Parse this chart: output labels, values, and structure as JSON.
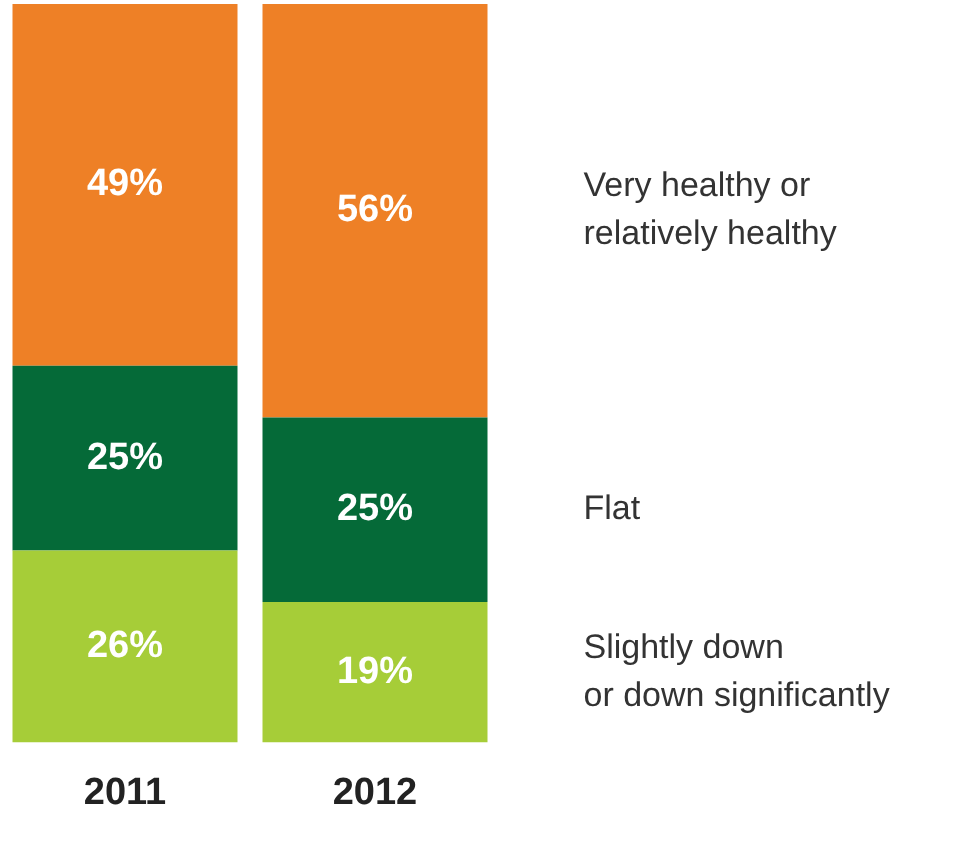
{
  "chart_data": {
    "type": "bar",
    "stacked": true,
    "legend": false,
    "tick_labels": "x",
    "categories": [
      "2011",
      "2012"
    ],
    "series": [
      {
        "name": "Slightly down\nor down significantly",
        "color": "#a6cd38",
        "values": [
          26,
          19
        ],
        "value_labels": [
          "26%",
          "19%"
        ]
      },
      {
        "name": "Flat",
        "color": "#056a38",
        "values": [
          25,
          25
        ],
        "value_labels": [
          "25%",
          "25%"
        ]
      },
      {
        "name": "Very healthy or\nrelatively healthy",
        "color": "#ee8026",
        "values": [
          49,
          56
        ],
        "value_labels": [
          "49%",
          "56%"
        ]
      }
    ]
  }
}
